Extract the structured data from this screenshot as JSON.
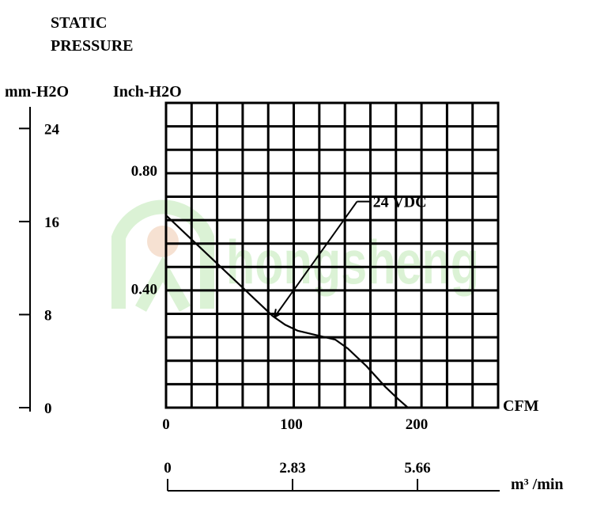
{
  "chart_data": {
    "type": "line",
    "title_line1": "STATIC",
    "title_line2": "PRESSURE",
    "left_unit": "mm-H2O",
    "inner_unit": "Inch-H2O",
    "x_unit": "CFM",
    "x2_unit": "m³ /min",
    "x_ticks": [
      "0",
      "100",
      "200"
    ],
    "x2_ticks": [
      "0",
      "2.83",
      "5.66"
    ],
    "inch_ticks": [
      "0.80",
      "0.40"
    ],
    "mm_ticks": [
      "24",
      "16",
      "8",
      "0"
    ],
    "xlim": [
      0,
      265
    ],
    "ylim_inch": [
      0,
      1.03
    ],
    "ylim_mm": [
      0,
      26.2
    ],
    "inch_tick_values": [
      0.8,
      0.4
    ],
    "mm_tick_values": [
      24,
      16,
      8,
      0
    ],
    "x_tick_values": [
      0,
      100,
      200
    ],
    "x2_tick_values": [
      0,
      2.83,
      5.66
    ],
    "series": [
      {
        "name": "24 VDC",
        "x": [
          0,
          20,
          40,
          60,
          75,
          85,
          95,
          105,
          115,
          125,
          135,
          145,
          160,
          175,
          185,
          193
        ],
        "y": [
          0.65,
          0.57,
          0.49,
          0.41,
          0.35,
          0.31,
          0.28,
          0.26,
          0.25,
          0.24,
          0.23,
          0.2,
          0.14,
          0.07,
          0.03,
          0.0
        ]
      }
    ],
    "annotation": {
      "text": "24 VDC",
      "series": "24 VDC",
      "at_x": 85,
      "at_y": 0.31,
      "text_x": 160,
      "text_y": 0.67
    },
    "grid": true
  },
  "watermark": {
    "text": "hongsheng",
    "color": "#cfeec8"
  }
}
